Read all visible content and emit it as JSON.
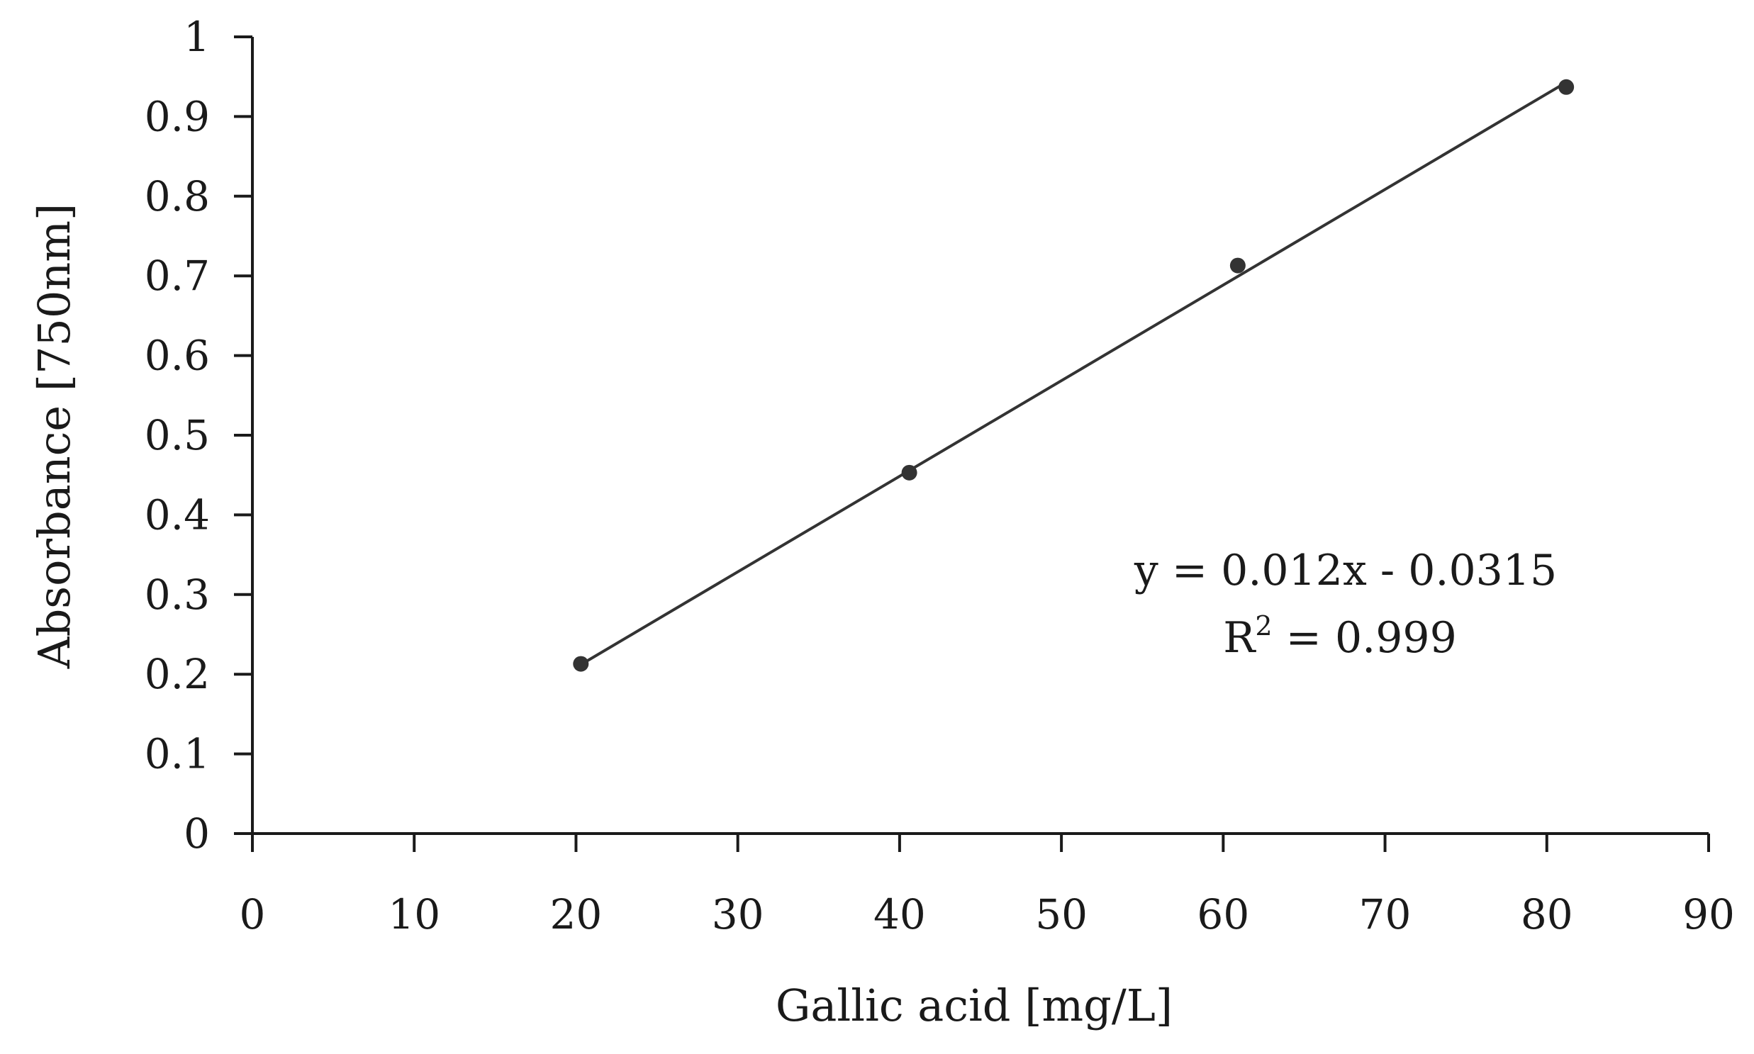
{
  "chart_data": {
    "type": "scatter",
    "xlabel": "Gallic acid [mg/L]",
    "ylabel": "Absorbance [750nm]",
    "xlim": [
      0,
      90
    ],
    "ylim": [
      0,
      1
    ],
    "x_ticks": [
      "0",
      "10",
      "20",
      "30",
      "40",
      "50",
      "60",
      "70",
      "80",
      "90"
    ],
    "y_ticks": [
      "0",
      "0.1",
      "0.2",
      "0.3",
      "0.4",
      "0.5",
      "0.6",
      "0.7",
      "0.8",
      "0.9",
      "1"
    ],
    "grid": false,
    "series": [
      {
        "x": [
          20.3,
          40.6,
          60.9,
          81.2
        ],
        "y": [
          0.213,
          0.453,
          0.713,
          0.937
        ]
      }
    ],
    "trendline": {
      "x_range": [
        20.3,
        81.2
      ],
      "slope": 0.012,
      "intercept": -0.0315
    },
    "annotations": {
      "equation": "y = 0.012x - 0.0315",
      "r2_prefix": "R",
      "r2_sup": "2",
      "r2_value": " = 0.999"
    },
    "colors": {
      "axis": "#1a1a1a",
      "marker": "#333333",
      "line": "#333333"
    }
  }
}
